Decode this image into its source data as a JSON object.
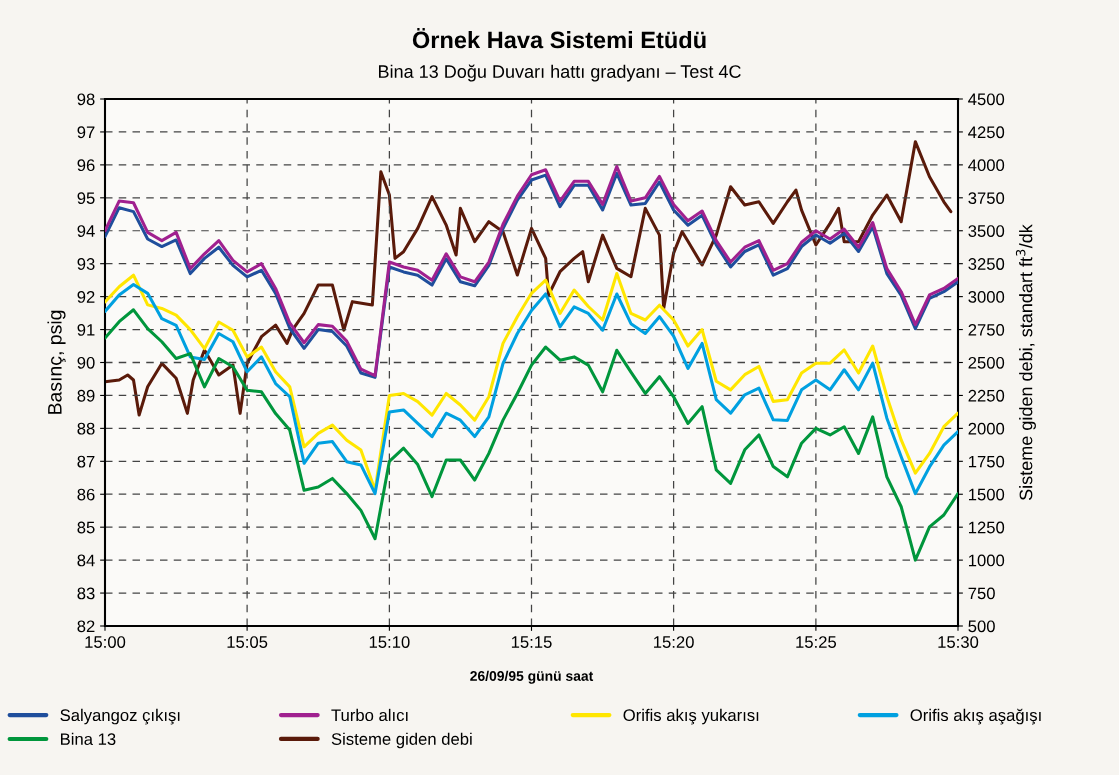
{
  "chart_data": {
    "type": "line",
    "title": "Örnek Hava Sistemi Etüdü",
    "subtitle": "Bina 13 Doğu Duvarı hattı gradyanı – Test 4C",
    "xlabel": "26/09/95 günü saat",
    "ylabel": "Basınç, psig",
    "y2label": "Sisteme giden debi, standart ft$^{3}$/dk",
    "x": [
      15,
      15.0083,
      15.0167,
      15.025,
      15.0333,
      15.0417,
      15.05,
      15.0583,
      15.0667,
      15.075,
      15.0833,
      15.0917,
      15.1,
      15.1083,
      15.1167,
      15.125,
      15.1333,
      15.1417,
      15.15,
      15.1583,
      15.1667,
      15.175,
      15.1833,
      15.1917,
      15.2,
      15.2083,
      15.2167,
      15.225,
      15.2333,
      15.2417,
      15.25,
      15.2583,
      15.2667,
      15.275,
      15.2833,
      15.2917,
      15.3,
      15.3083,
      15.3167,
      15.325,
      15.3333,
      15.3417,
      15.35,
      15.3583,
      15.3667,
      15.375,
      15.3833,
      15.3917,
      15.4,
      15.4083,
      15.4167,
      15.425,
      15.4333,
      15.4417,
      15.45,
      15.4583,
      15.4667,
      15.475,
      15.4833,
      15.4917,
      15.5
    ],
    "series": [
      {
        "name": "Salyangoz çıkışı",
        "color": "#1f4e9c",
        "values": [
          93.82,
          94.7,
          94.58,
          93.75,
          93.52,
          93.72,
          92.7,
          93.16,
          93.5,
          92.95,
          92.6,
          92.8,
          92.1,
          91.04,
          90.43,
          91.0,
          90.94,
          90.5,
          89.68,
          89.55,
          92.9,
          92.75,
          92.65,
          92.35,
          93.15,
          92.45,
          92.33,
          92.95,
          94.07,
          94.93,
          95.54,
          95.69,
          94.73,
          95.38,
          95.38,
          94.63,
          95.74,
          94.78,
          94.83,
          95.48,
          94.63,
          94.17,
          94.47,
          93.57,
          92.9,
          93.37,
          93.57,
          92.65,
          92.85,
          93.52,
          93.87,
          93.62,
          93.92,
          93.37,
          94.12,
          92.7,
          92.04,
          91.03,
          91.95,
          92.15,
          92.45
        ]
      },
      {
        "name": "Turbo alıcı",
        "color": "#a0208f",
        "values": [
          94.0,
          94.9,
          94.85,
          93.95,
          93.7,
          93.95,
          92.85,
          93.3,
          93.7,
          93.1,
          92.75,
          93.0,
          92.25,
          91.2,
          90.6,
          91.15,
          91.1,
          90.65,
          89.8,
          89.6,
          93.05,
          92.9,
          92.8,
          92.5,
          93.3,
          92.6,
          92.45,
          93.05,
          94.2,
          95.05,
          95.7,
          95.85,
          94.9,
          95.5,
          95.5,
          94.8,
          95.95,
          94.9,
          95.0,
          95.65,
          94.8,
          94.3,
          94.6,
          93.7,
          93.05,
          93.5,
          93.7,
          92.8,
          93.0,
          93.65,
          94.0,
          93.75,
          94.05,
          93.5,
          94.25,
          92.85,
          92.15,
          91.15,
          92.05,
          92.25,
          92.55
        ]
      },
      {
        "name": "Orifis akış yukarısı",
        "color": "#ffe600",
        "values": [
          91.84,
          92.3,
          92.65,
          91.75,
          91.64,
          91.44,
          91.0,
          90.42,
          91.23,
          90.98,
          90.17,
          90.47,
          89.72,
          89.26,
          87.44,
          87.85,
          88.1,
          87.64,
          87.34,
          86.12,
          89.0,
          89.06,
          88.81,
          88.4,
          89.06,
          88.71,
          88.25,
          88.96,
          90.58,
          91.39,
          92.1,
          92.5,
          91.49,
          92.2,
          91.7,
          91.29,
          92.7,
          91.49,
          91.29,
          91.74,
          91.29,
          90.5,
          91.0,
          89.43,
          89.17,
          89.63,
          89.88,
          88.82,
          88.87,
          89.68,
          89.98,
          89.98,
          90.38,
          89.68,
          90.5,
          88.97,
          87.65,
          86.64,
          87.24,
          88.05,
          88.46
        ]
      },
      {
        "name": "Orifis akış aşağışı",
        "color": "#00a0e0",
        "values": [
          91.55,
          92.05,
          92.37,
          92.1,
          91.33,
          91.13,
          90.17,
          90.09,
          90.88,
          90.63,
          89.72,
          90.17,
          89.36,
          88.96,
          86.94,
          87.55,
          87.6,
          86.99,
          86.89,
          86.02,
          88.5,
          88.56,
          88.15,
          87.75,
          88.46,
          88.25,
          87.75,
          88.35,
          89.97,
          90.88,
          91.58,
          92.08,
          91.08,
          91.69,
          91.49,
          90.98,
          92.08,
          91.18,
          90.88,
          91.39,
          90.8,
          89.82,
          90.58,
          88.87,
          88.46,
          89.02,
          89.22,
          88.26,
          88.24,
          89.17,
          89.47,
          89.17,
          89.78,
          89.17,
          89.98,
          88.31,
          87.14,
          86.02,
          86.83,
          87.49,
          87.9
        ]
      },
      {
        "name": "Bina 13",
        "color": "#00963c",
        "values": [
          90.74,
          91.24,
          91.6,
          91.03,
          90.63,
          90.12,
          90.27,
          89.26,
          90.12,
          89.87,
          89.16,
          89.11,
          88.45,
          87.95,
          86.12,
          86.22,
          86.48,
          86.02,
          85.51,
          84.65,
          87.0,
          87.4,
          86.9,
          85.93,
          87.04,
          87.04,
          86.43,
          87.24,
          88.25,
          89.06,
          89.92,
          90.47,
          90.07,
          90.17,
          89.92,
          89.11,
          90.37,
          89.71,
          89.06,
          89.57,
          88.96,
          88.15,
          88.66,
          86.74,
          86.33,
          87.35,
          87.8,
          86.84,
          86.53,
          87.55,
          88.0,
          87.8,
          88.05,
          87.24,
          88.35,
          86.53,
          85.62,
          84.0,
          85.01,
          85.37,
          86.02
        ]
      },
      {
        "name": "Sisteme giden debi",
        "color": "#5a1a0a",
        "axis": "y2",
        "x": [
          15,
          15.0083,
          15.0133,
          15.0167,
          15.02,
          15.025,
          15.0333,
          15.0417,
          15.0483,
          15.0517,
          15.0583,
          15.0667,
          15.075,
          15.0792,
          15.0833,
          15.0917,
          15.1,
          15.1067,
          15.11,
          15.1167,
          15.125,
          15.1333,
          15.14,
          15.145,
          15.1567,
          15.1617,
          15.1667,
          15.17,
          15.175,
          15.1833,
          15.1917,
          15.2,
          15.2058,
          15.2083,
          15.2167,
          15.225,
          15.2333,
          15.2417,
          15.25,
          15.2583,
          15.26,
          15.2667,
          15.275,
          15.28,
          15.2833,
          15.2917,
          15.3,
          15.3083,
          15.3167,
          15.325,
          15.3275,
          15.3333,
          15.3383,
          15.3417,
          15.35,
          15.3583,
          15.3667,
          15.375,
          15.3833,
          15.3917,
          15.4,
          15.405,
          15.4083,
          15.4167,
          15.425,
          15.43,
          15.4333,
          15.4417,
          15.45,
          15.4583,
          15.4667,
          15.475,
          15.4833,
          15.4917,
          15.4958
        ],
        "values": [
          2354,
          2367,
          2405,
          2367,
          2101,
          2316,
          2493,
          2380,
          2114,
          2367,
          2595,
          2405,
          2481,
          2114,
          2493,
          2696,
          2784,
          2645,
          2750,
          2873,
          3088,
          3088,
          2746,
          2962,
          2936,
          3948,
          3771,
          3290,
          3341,
          3518,
          3759,
          3543,
          3316,
          3670,
          3417,
          3569,
          3493,
          3164,
          3518,
          3290,
          3012,
          3189,
          3290,
          3341,
          3113,
          3467,
          3214,
          3151,
          3670,
          3467,
          2911,
          3330,
          3493,
          3420,
          3240,
          3467,
          3834,
          3695,
          3720,
          3556,
          3720,
          3809,
          3657,
          3392,
          3556,
          3670,
          3417,
          3417,
          3619,
          3771,
          3569,
          4176,
          3910,
          3720,
          3645
        ]
      }
    ],
    "xlim": [
      15,
      15.5
    ],
    "xticks": [
      {
        "value": 15,
        "label": "15:00"
      },
      {
        "value": 15.0833,
        "label": "15:05"
      },
      {
        "value": 15.1667,
        "label": "15:10"
      },
      {
        "value": 15.25,
        "label": "15:15"
      },
      {
        "value": 15.3333,
        "label": "15:20"
      },
      {
        "value": 15.4167,
        "label": "15:25"
      },
      {
        "value": 15.5,
        "label": "15:30"
      }
    ],
    "ylim": [
      82,
      98
    ],
    "yticks": [
      82,
      83,
      84,
      85,
      86,
      87,
      88,
      89,
      90,
      91,
      92,
      93,
      94,
      95,
      96,
      97,
      98
    ],
    "y2lim": [
      500,
      4500
    ],
    "y2ticks": [
      500,
      750,
      1000,
      1250,
      1500,
      1750,
      2000,
      2250,
      2500,
      2750,
      3000,
      3250,
      3500,
      3750,
      4000,
      4250,
      4500
    ],
    "grid": true,
    "legend": "bottom",
    "line_style": "solid",
    "marker": "none"
  }
}
